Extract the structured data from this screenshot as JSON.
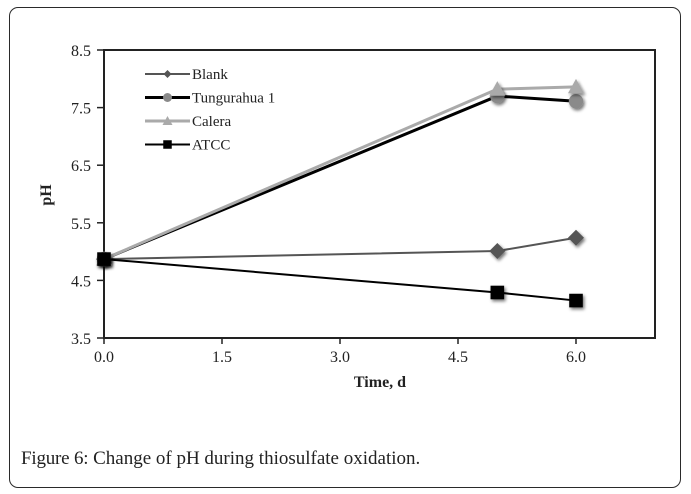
{
  "caption": {
    "label": "Figure 6:",
    "text": " Change of pH during thiosulfate oxidation."
  },
  "chart_data": {
    "type": "line",
    "title": "",
    "xlabel": "Time, d",
    "ylabel": "pH",
    "xlim": [
      0,
      7.0
    ],
    "ylim": [
      3.5,
      8.5
    ],
    "xticks": [
      "0.0",
      "1.5",
      "3.0",
      "4.5",
      "6.0"
    ],
    "xtick_values": [
      0,
      1.5,
      3.0,
      4.5,
      6.0
    ],
    "yticks": [
      "3.5",
      "4.5",
      "5.5",
      "6.5",
      "7.5",
      "8.5"
    ],
    "ytick_values": [
      3.5,
      4.5,
      5.5,
      6.5,
      7.5,
      8.5
    ],
    "grid": false,
    "legend_position": "top-left",
    "x": [
      0,
      5,
      6
    ],
    "series": [
      {
        "name": "Blank",
        "values": [
          4.87,
          5.01,
          5.24
        ],
        "color": "#555555",
        "marker": "diamond"
      },
      {
        "name": "Tungurahua 1",
        "values": [
          4.87,
          7.7,
          7.61
        ],
        "color": "#000000",
        "marker_color": "#8a8a8a",
        "marker": "circle"
      },
      {
        "name": "Calera",
        "values": [
          4.87,
          7.82,
          7.86
        ],
        "color": "#aaaaaa",
        "marker": "triangle"
      },
      {
        "name": "ATCC",
        "values": [
          4.87,
          4.29,
          4.15
        ],
        "color": "#000000",
        "marker": "square"
      }
    ]
  }
}
